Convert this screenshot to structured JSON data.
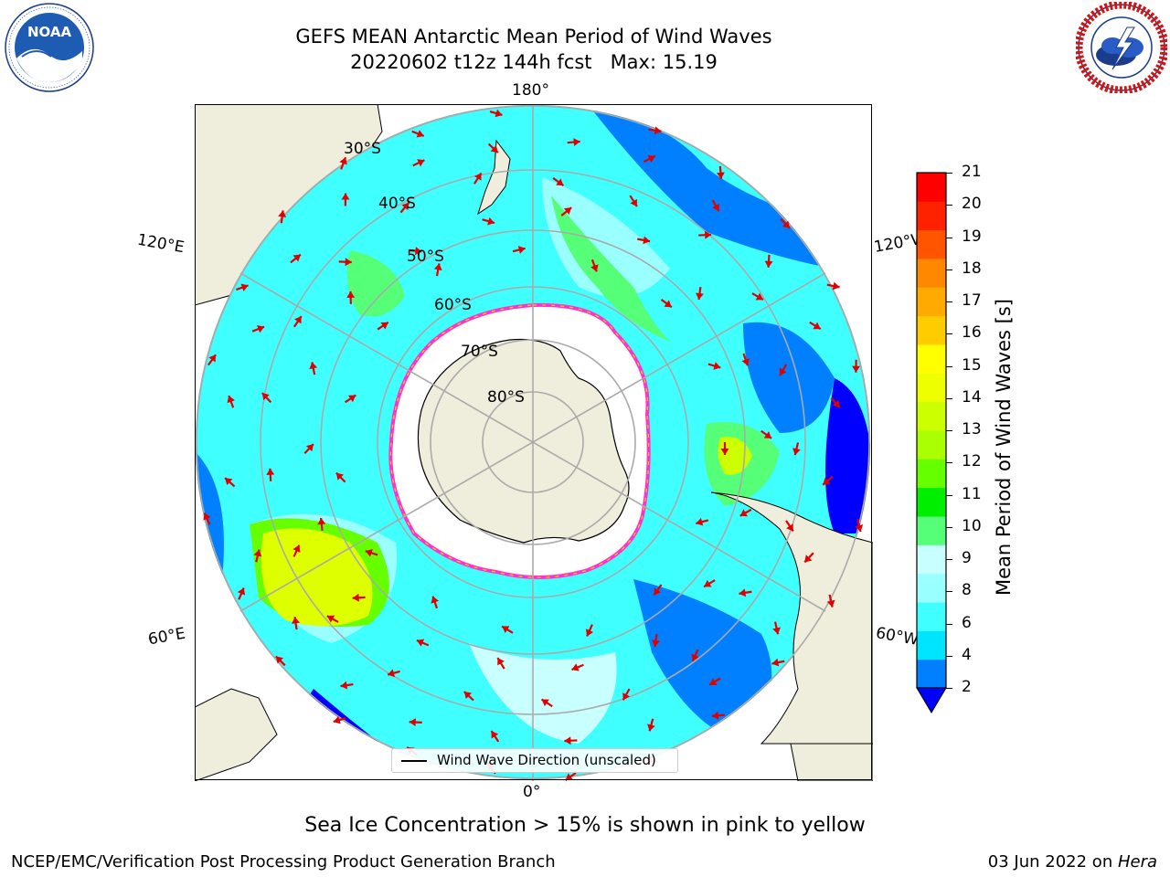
{
  "title": {
    "line1": "GEFS MEAN Antarctic Mean Period of Wind Waves",
    "line2": "20220602 t12z 144h fcst   Max: 15.19"
  },
  "logos": {
    "noaa": {
      "name": "NOAA",
      "ring_text": "NATIONAL OCEANIC AND ATMOSPHERIC ADMINISTRATION · U.S. DEPARTMENT OF COMMERCE"
    },
    "nws": {
      "ring_text": "NATIONAL WEATHER SERVICE"
    }
  },
  "map": {
    "lon_labels": {
      "top": "180°",
      "bottom": "0°",
      "left_upper": "120°E",
      "left_lower": "60°E",
      "right_upper": "120°W",
      "right_lower": "60°W"
    },
    "lat_labels": [
      "30°S",
      "40°S",
      "50°S",
      "60°S",
      "70°S",
      "80°S"
    ],
    "legend": "Wind Wave Direction (unscaled)",
    "colors": {
      "land": "#efeedc",
      "ice": "#ffffff",
      "ice_edge": "#ff33cc",
      "arrow": "#e00000",
      "grid": "#aaaaaa"
    }
  },
  "colorbar": {
    "title": "Mean Period of Wind Waves [s]",
    "ticks": [
      "2",
      "4",
      "6",
      "8",
      "9",
      "10",
      "11",
      "12",
      "13",
      "14",
      "15",
      "16",
      "17",
      "18",
      "19",
      "20",
      "21"
    ],
    "colors": [
      "#0080ff",
      "#00e5ff",
      "#40ffff",
      "#99ffff",
      "#c8ffff",
      "#55ff77",
      "#00ee00",
      "#66ff00",
      "#aaff00",
      "#ccff00",
      "#eeff00",
      "#ffff00",
      "#ffcc00",
      "#ffaa00",
      "#ff8800",
      "#ff5500",
      "#ff2200",
      "#ff0000"
    ],
    "extend_color": "#0000ff"
  },
  "caption": "Sea Ice Concentration > 15% is shown in pink to yellow",
  "footer": {
    "left": "NCEP/EMC/Verification Post Processing Product Generation Branch",
    "right_prefix": "03 Jun 2022 on ",
    "right_host": "Hera"
  }
}
